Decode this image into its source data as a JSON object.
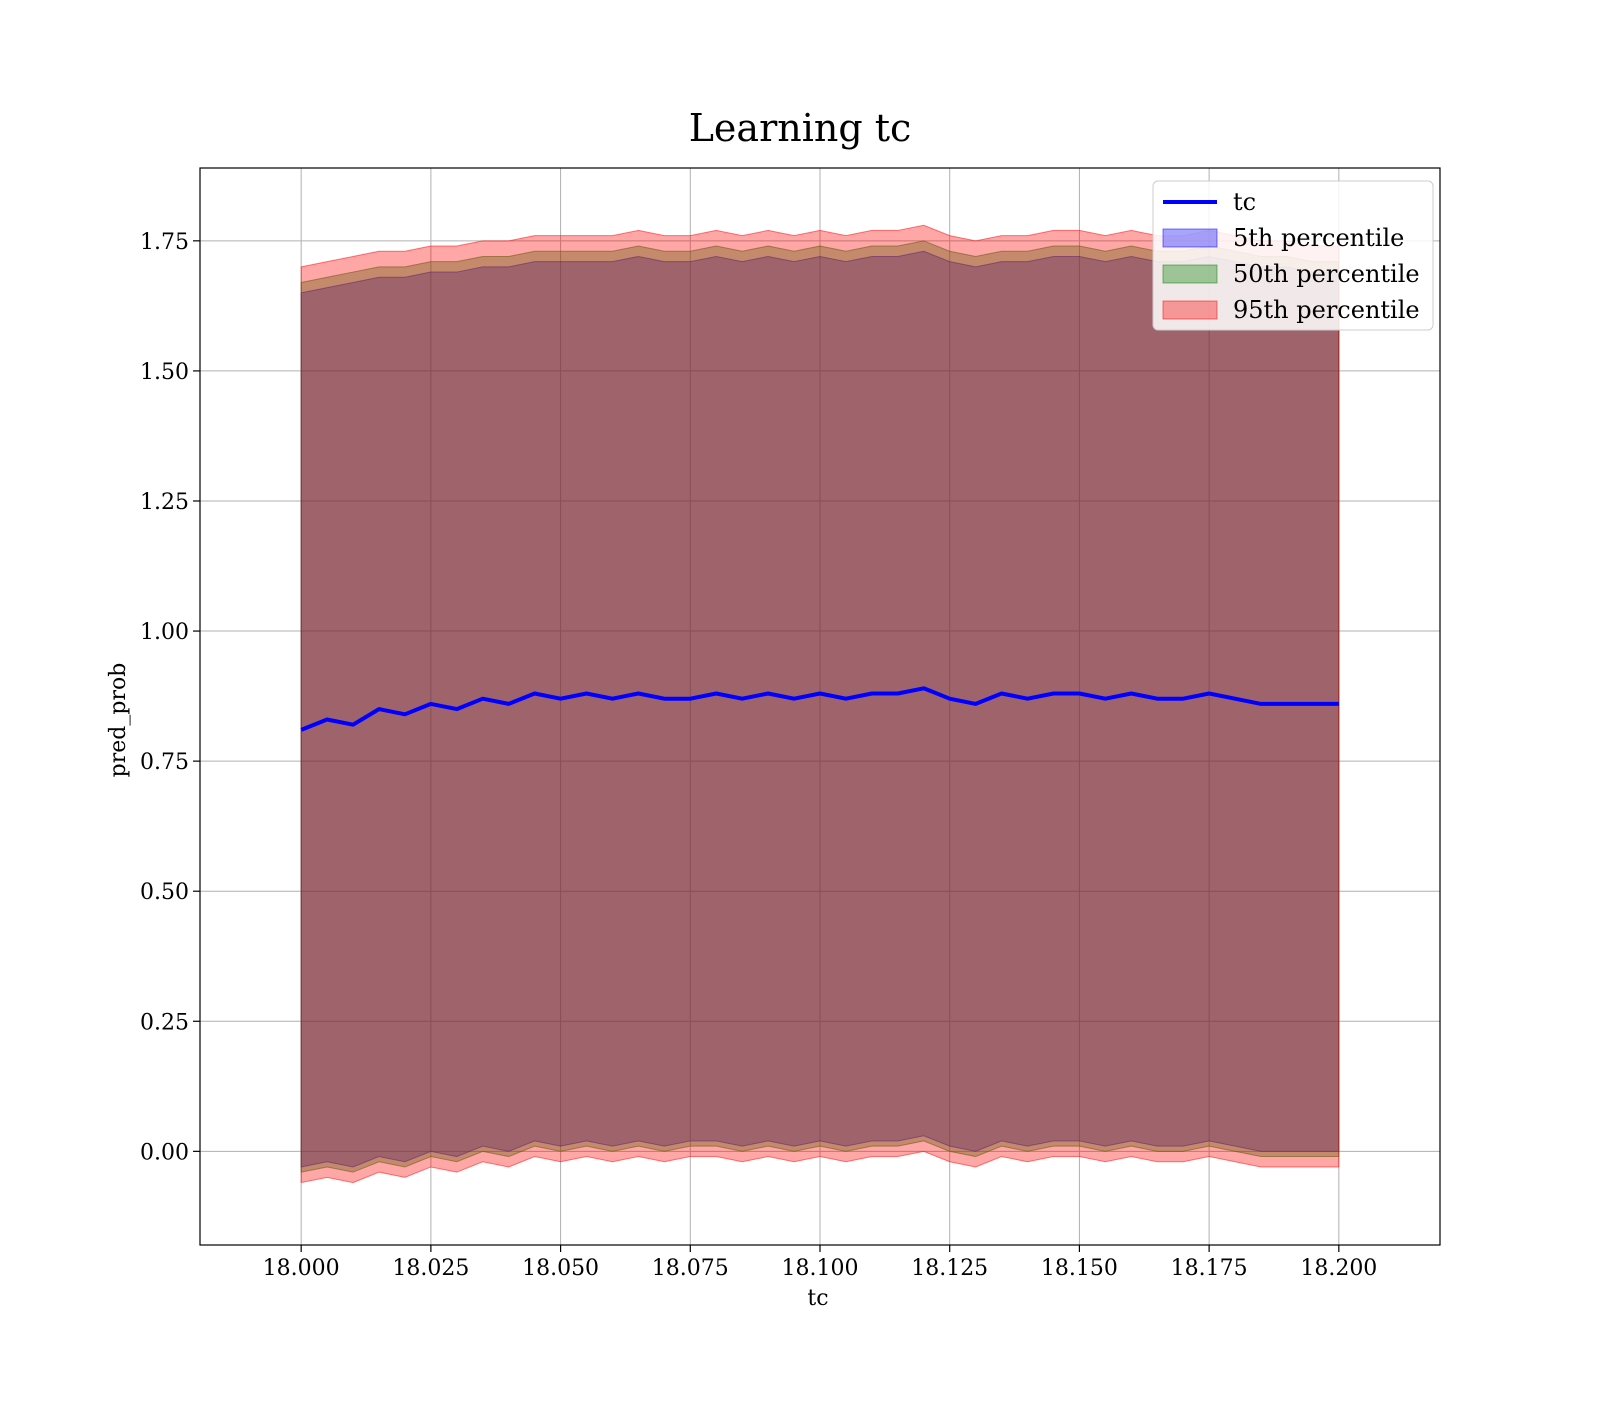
{
  "chart_data": {
    "type": "area",
    "title": "Learning tc",
    "xlabel": "tc",
    "ylabel": "pred_prob",
    "xlim": [
      17.9805,
      18.2195
    ],
    "ylim": [
      -0.18,
      1.89
    ],
    "x_ticks": [
      18.0,
      18.025,
      18.05,
      18.075,
      18.1,
      18.125,
      18.15,
      18.175,
      18.2
    ],
    "x_tick_labels": [
      "18.000",
      "18.025",
      "18.050",
      "18.075",
      "18.100",
      "18.125",
      "18.150",
      "18.175",
      "18.200"
    ],
    "y_ticks": [
      0.0,
      0.25,
      0.5,
      0.75,
      1.0,
      1.25,
      1.5,
      1.75
    ],
    "y_tick_labels": [
      "0.00",
      "0.25",
      "0.50",
      "0.75",
      "1.00",
      "1.25",
      "1.50",
      "1.75"
    ],
    "grid": true,
    "legend_position": "top-right",
    "x": [
      18.0,
      18.005,
      18.01,
      18.015,
      18.02,
      18.025,
      18.03,
      18.035,
      18.04,
      18.045,
      18.05,
      18.055,
      18.06,
      18.065,
      18.07,
      18.075,
      18.08,
      18.085,
      18.09,
      18.095,
      18.1,
      18.105,
      18.11,
      18.115,
      18.12,
      18.125,
      18.13,
      18.135,
      18.14,
      18.145,
      18.15,
      18.155,
      18.16,
      18.165,
      18.17,
      18.175,
      18.18,
      18.185,
      18.19,
      18.195,
      18.2
    ],
    "line": {
      "name": "tc",
      "color": "#0000ff",
      "values": [
        0.81,
        0.83,
        0.82,
        0.85,
        0.84,
        0.86,
        0.85,
        0.87,
        0.86,
        0.88,
        0.87,
        0.88,
        0.87,
        0.88,
        0.87,
        0.87,
        0.88,
        0.87,
        0.88,
        0.87,
        0.88,
        0.87,
        0.88,
        0.88,
        0.89,
        0.87,
        0.86,
        0.88,
        0.87,
        0.88,
        0.88,
        0.87,
        0.88,
        0.87,
        0.87,
        0.88,
        0.87,
        0.86,
        0.86,
        0.86,
        0.86
      ]
    },
    "bands": [
      {
        "name": "5th percentile",
        "color": "#0000ff",
        "lower": [
          -0.03,
          -0.02,
          -0.03,
          -0.01,
          -0.02,
          0.0,
          -0.01,
          0.01,
          0.0,
          0.02,
          0.01,
          0.02,
          0.01,
          0.02,
          0.01,
          0.02,
          0.02,
          0.01,
          0.02,
          0.01,
          0.02,
          0.01,
          0.02,
          0.02,
          0.03,
          0.01,
          0.0,
          0.02,
          0.01,
          0.02,
          0.02,
          0.01,
          0.02,
          0.01,
          0.01,
          0.02,
          0.01,
          0.0,
          0.0,
          0.0,
          0.0
        ],
        "upper": [
          1.65,
          1.66,
          1.67,
          1.68,
          1.68,
          1.69,
          1.69,
          1.7,
          1.7,
          1.71,
          1.71,
          1.71,
          1.71,
          1.72,
          1.71,
          1.71,
          1.72,
          1.71,
          1.72,
          1.71,
          1.72,
          1.71,
          1.72,
          1.72,
          1.73,
          1.71,
          1.7,
          1.71,
          1.71,
          1.72,
          1.72,
          1.71,
          1.72,
          1.71,
          1.71,
          1.72,
          1.71,
          1.7,
          1.7,
          1.69,
          1.69
        ]
      },
      {
        "name": "50th percentile",
        "color": "#008000",
        "lower": [
          -0.04,
          -0.03,
          -0.04,
          -0.02,
          -0.03,
          -0.01,
          -0.02,
          0.0,
          -0.01,
          0.01,
          0.0,
          0.01,
          0.0,
          0.01,
          0.0,
          0.01,
          0.01,
          0.0,
          0.01,
          0.0,
          0.01,
          0.0,
          0.01,
          0.01,
          0.02,
          0.0,
          -0.01,
          0.01,
          0.0,
          0.01,
          0.01,
          0.0,
          0.01,
          0.0,
          0.0,
          0.01,
          0.0,
          -0.01,
          -0.01,
          -0.01,
          -0.01
        ],
        "upper": [
          1.67,
          1.68,
          1.69,
          1.7,
          1.7,
          1.71,
          1.71,
          1.72,
          1.72,
          1.73,
          1.73,
          1.73,
          1.73,
          1.74,
          1.73,
          1.73,
          1.74,
          1.73,
          1.74,
          1.73,
          1.74,
          1.73,
          1.74,
          1.74,
          1.75,
          1.73,
          1.72,
          1.73,
          1.73,
          1.74,
          1.74,
          1.73,
          1.74,
          1.73,
          1.73,
          1.74,
          1.73,
          1.72,
          1.72,
          1.71,
          1.71
        ]
      },
      {
        "name": "95th percentile",
        "color": "#ff0000",
        "lower": [
          -0.06,
          -0.05,
          -0.06,
          -0.04,
          -0.05,
          -0.03,
          -0.04,
          -0.02,
          -0.03,
          -0.01,
          -0.02,
          -0.01,
          -0.02,
          -0.01,
          -0.02,
          -0.01,
          -0.01,
          -0.02,
          -0.01,
          -0.02,
          -0.01,
          -0.02,
          -0.01,
          -0.01,
          0.0,
          -0.02,
          -0.03,
          -0.01,
          -0.02,
          -0.01,
          -0.01,
          -0.02,
          -0.01,
          -0.02,
          -0.02,
          -0.01,
          -0.02,
          -0.03,
          -0.03,
          -0.03,
          -0.03
        ],
        "upper": [
          1.7,
          1.71,
          1.72,
          1.73,
          1.73,
          1.74,
          1.74,
          1.75,
          1.75,
          1.76,
          1.76,
          1.76,
          1.76,
          1.77,
          1.76,
          1.76,
          1.77,
          1.76,
          1.77,
          1.76,
          1.77,
          1.76,
          1.77,
          1.77,
          1.78,
          1.76,
          1.75,
          1.76,
          1.76,
          1.77,
          1.77,
          1.76,
          1.77,
          1.76,
          1.76,
          1.77,
          1.76,
          1.75,
          1.75,
          1.74,
          1.74
        ]
      }
    ],
    "legend": [
      "tc",
      "5th percentile",
      "50th percentile",
      "95th percentile"
    ]
  }
}
